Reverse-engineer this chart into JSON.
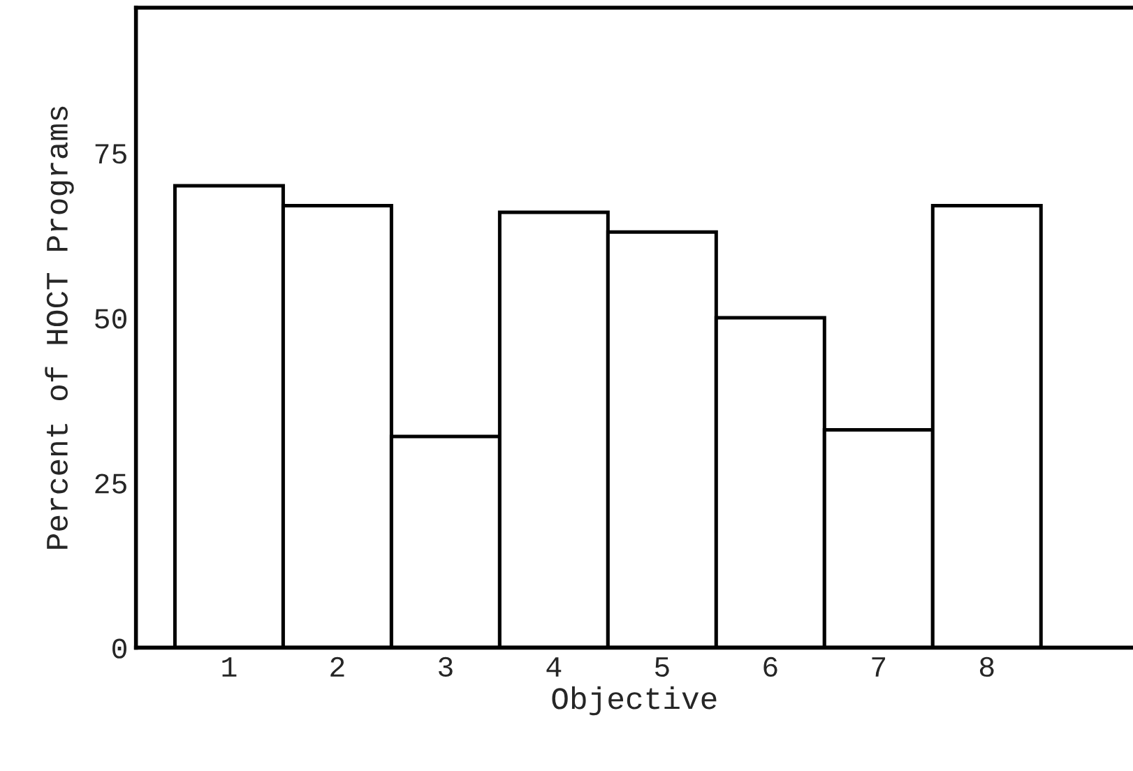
{
  "chart_data": {
    "type": "bar",
    "xlabel": "Objective",
    "ylabel": "Percent of HOCT Programs",
    "categories": [
      "1",
      "2",
      "3",
      "4",
      "5",
      "6",
      "7",
      "8"
    ],
    "values": [
      70,
      67,
      32,
      66,
      63,
      50,
      33,
      67
    ],
    "color": "#ffffff",
    "ylim": [
      0,
      97
    ],
    "yticks": [
      0,
      25,
      50,
      75
    ],
    "grid": false
  }
}
